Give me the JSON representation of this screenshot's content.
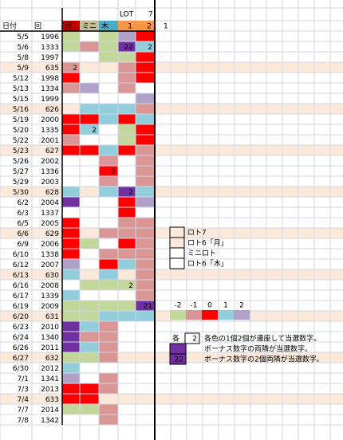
{
  "header": {
    "lot_label": "LOT",
    "lot_num": 7,
    "columns": [
      "日付",
      "回",
      "月",
      "ミニ",
      "木",
      1,
      2
    ],
    "extra": 1
  },
  "palette": {
    "G": "#c4d79b",
    "P": "#da9694",
    "R": "#ff0000",
    "B": "#92cddc",
    "V": "#b1a0c7",
    "D": "#7030a0",
    "W": "#ffffff",
    "F": "#fde9d9"
  },
  "header_colors": [
    "W",
    "W",
    "#c00000",
    "#c4bd97",
    "#4bacc6",
    "#f79646",
    "#f79646"
  ],
  "rows": [
    {
      "date": "5/5",
      "round": 1996,
      "cells": [
        {
          "c": "G"
        },
        {
          "c": "W"
        },
        {
          "c": "G"
        },
        {
          "c": "V"
        },
        {
          "c": "R"
        }
      ]
    },
    {
      "date": "5/6",
      "round": 1333,
      "cells": [
        {
          "c": "G"
        },
        {
          "c": "P"
        },
        {
          "c": "G"
        },
        {
          "c": "D",
          "t": 22
        },
        {
          "c": "B",
          "t": 2
        }
      ]
    },
    {
      "date": "5/8",
      "round": 1997,
      "cells": [
        {
          "c": "W"
        },
        {
          "c": "W"
        },
        {
          "c": "G"
        },
        {
          "c": "G"
        },
        {
          "c": "R"
        }
      ]
    },
    {
      "date": "5/9",
      "round": 635,
      "bg": "F",
      "cells": [
        {
          "c": "P",
          "t": 2
        },
        {
          "c": "F"
        },
        {
          "c": "F"
        },
        {
          "c": "P"
        },
        {
          "c": "R"
        }
      ]
    },
    {
      "date": "5/12",
      "round": 1998,
      "cells": [
        {
          "c": "R"
        },
        {
          "c": "W"
        },
        {
          "c": "W"
        },
        {
          "c": "P"
        },
        {
          "c": "R"
        }
      ]
    },
    {
      "date": "5/13",
      "round": 1334,
      "cells": [
        {
          "c": "P"
        },
        {
          "c": "V"
        },
        {
          "c": "W"
        },
        {
          "c": "P"
        },
        {
          "c": "W"
        }
      ]
    },
    {
      "date": "5/15",
      "round": 1999,
      "cells": [
        {
          "c": "W"
        },
        {
          "c": "W"
        },
        {
          "c": "W"
        },
        {
          "c": "W"
        },
        {
          "c": "V"
        }
      ]
    },
    {
      "date": "5/16",
      "round": 626,
      "bg": "F",
      "cells": [
        {
          "c": "F"
        },
        {
          "c": "B"
        },
        {
          "c": "B"
        },
        {
          "c": "B"
        },
        {
          "c": "P"
        }
      ]
    },
    {
      "date": "5/19",
      "round": 2000,
      "cells": [
        {
          "c": "R"
        },
        {
          "c": "R"
        },
        {
          "c": "B"
        },
        {
          "c": "R"
        },
        {
          "c": "B"
        }
      ]
    },
    {
      "date": "5/20",
      "round": 1335,
      "cells": [
        {
          "c": "R"
        },
        {
          "c": "B",
          "t": 2
        },
        {
          "c": "W"
        },
        {
          "c": "G"
        },
        {
          "c": "R"
        }
      ]
    },
    {
      "date": "5/22",
      "round": 2001,
      "cells": [
        {
          "c": "P"
        },
        {
          "c": "W"
        },
        {
          "c": "W"
        },
        {
          "c": "G"
        },
        {
          "c": "R"
        }
      ]
    },
    {
      "date": "5/23",
      "round": 627,
      "bg": "F",
      "cells": [
        {
          "c": "R"
        },
        {
          "c": "R"
        },
        {
          "c": "B"
        },
        {
          "c": "R"
        },
        {
          "c": "P"
        }
      ]
    },
    {
      "date": "5/26",
      "round": 2002,
      "cells": [
        {
          "c": "W"
        },
        {
          "c": "W"
        },
        {
          "c": "P"
        },
        {
          "c": "W"
        },
        {
          "c": "P"
        }
      ]
    },
    {
      "date": "5/27",
      "round": 1336,
      "cells": [
        {
          "c": "W"
        },
        {
          "c": "W"
        },
        {
          "c": "R",
          "t": 2
        },
        {
          "c": "W"
        },
        {
          "c": "P"
        }
      ]
    },
    {
      "date": "5/29",
      "round": 2003,
      "cells": [
        {
          "c": "W"
        },
        {
          "c": "W"
        },
        {
          "c": "P"
        },
        {
          "c": "W"
        },
        {
          "c": "P"
        }
      ]
    },
    {
      "date": "5/30",
      "round": 628,
      "bg": "F",
      "cells": [
        {
          "c": "B"
        },
        {
          "c": "F"
        },
        {
          "c": "B"
        },
        {
          "c": "D",
          "t": 2
        },
        {
          "c": "B"
        }
      ]
    },
    {
      "date": "6/2",
      "round": 2004,
      "cells": [
        {
          "c": "D"
        },
        {
          "c": "W"
        },
        {
          "c": "W"
        },
        {
          "c": "R"
        },
        {
          "c": "V"
        }
      ]
    },
    {
      "date": "6/3",
      "round": 1337,
      "cells": [
        {
          "c": "W"
        },
        {
          "c": "W"
        },
        {
          "c": "W"
        },
        {
          "c": "R"
        },
        {
          "c": "W"
        }
      ]
    },
    {
      "date": "6/5",
      "round": 2005,
      "cells": [
        {
          "c": "R"
        },
        {
          "c": "W"
        },
        {
          "c": "W"
        },
        {
          "c": "P"
        },
        {
          "c": "P"
        }
      ]
    },
    {
      "date": "6/6",
      "round": 629,
      "bg": "F",
      "cells": [
        {
          "c": "R"
        },
        {
          "c": "F"
        },
        {
          "c": "P"
        },
        {
          "c": "P"
        },
        {
          "c": "P"
        }
      ]
    },
    {
      "date": "6/9",
      "round": 2006,
      "cells": [
        {
          "c": "R"
        },
        {
          "c": "G"
        },
        {
          "c": "W"
        },
        {
          "c": "R"
        },
        {
          "c": "P"
        }
      ]
    },
    {
      "date": "6/10",
      "round": 1338,
      "cells": [
        {
          "c": "R"
        },
        {
          "c": "W"
        },
        {
          "c": "P"
        },
        {
          "c": "P"
        },
        {
          "c": "P"
        }
      ]
    },
    {
      "date": "6/12",
      "round": 2007,
      "cells": [
        {
          "c": "V"
        },
        {
          "c": "W"
        },
        {
          "c": "R"
        },
        {
          "c": "B"
        },
        {
          "c": "P"
        }
      ]
    },
    {
      "date": "6/13",
      "round": 630,
      "bg": "F",
      "cells": [
        {
          "c": "B"
        },
        {
          "c": "F"
        },
        {
          "c": "B"
        },
        {
          "c": "F"
        },
        {
          "c": "P"
        }
      ]
    },
    {
      "date": "6/16",
      "round": 2008,
      "cells": [
        {
          "c": "W"
        },
        {
          "c": "G"
        },
        {
          "c": "G"
        },
        {
          "c": "G",
          "t": 2
        },
        {
          "c": "P"
        }
      ]
    },
    {
      "date": "6/17",
      "round": 1339,
      "cells": [
        {
          "c": "B"
        },
        {
          "c": "W"
        },
        {
          "c": "W"
        },
        {
          "c": "W"
        },
        {
          "c": "P"
        }
      ]
    },
    {
      "date": "6/19",
      "round": 2009,
      "cells": [
        {
          "c": "G"
        },
        {
          "c": "G"
        },
        {
          "c": "G"
        },
        {
          "c": "G"
        },
        {
          "c": "D",
          "t": 21
        }
      ]
    },
    {
      "date": "6/20",
      "round": 631,
      "bg": "F",
      "cells": [
        {
          "c": "G"
        },
        {
          "c": "G"
        },
        {
          "c": "B"
        },
        {
          "c": "B"
        },
        {
          "c": "B"
        }
      ]
    },
    {
      "date": "6/23",
      "round": 2010,
      "cells": [
        {
          "c": "D"
        },
        {
          "c": "B"
        },
        {
          "c": "P"
        },
        {
          "c": "W"
        },
        {
          "c": "W"
        }
      ]
    },
    {
      "date": "6/24",
      "round": 1340,
      "cells": [
        {
          "c": "D"
        },
        {
          "c": "P"
        },
        {
          "c": "P"
        },
        {
          "c": "W"
        },
        {
          "c": "W"
        }
      ]
    },
    {
      "date": "6/26",
      "round": 2011,
      "cells": [
        {
          "c": "D"
        },
        {
          "c": "B"
        },
        {
          "c": "P"
        },
        {
          "c": "W"
        },
        {
          "c": "W"
        }
      ]
    },
    {
      "date": "6/27",
      "round": 632,
      "bg": "F",
      "cells": [
        {
          "c": "G"
        },
        {
          "c": "G"
        },
        {
          "c": "P"
        },
        {
          "c": "F"
        },
        {
          "c": "F"
        }
      ]
    },
    {
      "date": "6/30",
      "round": 2012,
      "cells": [
        {
          "c": "B"
        },
        {
          "c": "W"
        },
        {
          "c": "W"
        },
        {
          "c": "W"
        },
        {
          "c": "W"
        }
      ]
    },
    {
      "date": "7/1",
      "round": 1341,
      "cells": [
        {
          "c": "V"
        },
        {
          "c": "W"
        },
        {
          "c": "P"
        },
        {
          "c": "W"
        },
        {
          "c": "W"
        }
      ]
    },
    {
      "date": "7/3",
      "round": 2013,
      "cells": [
        {
          "c": "R"
        },
        {
          "c": "R"
        },
        {
          "c": "P"
        },
        {
          "c": "W"
        },
        {
          "c": "W"
        }
      ]
    },
    {
      "date": "7/4",
      "round": 633,
      "bg": "F",
      "cells": [
        {
          "c": "R"
        },
        {
          "c": "R"
        },
        {
          "c": "F"
        },
        {
          "c": "F"
        },
        {
          "c": "F"
        }
      ]
    },
    {
      "date": "7/7",
      "round": 2014,
      "cells": [
        {
          "c": "G"
        },
        {
          "c": "G"
        },
        {
          "c": "P"
        },
        {
          "c": "W"
        },
        {
          "c": "W"
        }
      ]
    },
    {
      "date": "7/8",
      "round": 1342,
      "cells": [
        {
          "c": "W"
        },
        {
          "c": "W"
        },
        {
          "c": "P"
        },
        {
          "c": "W"
        },
        {
          "c": "W"
        }
      ]
    }
  ],
  "legend": {
    "items": [
      {
        "label": "ロト7",
        "c": "F"
      },
      {
        "label": "ロト6「月」",
        "c": "F"
      },
      {
        "label": "ミニロト",
        "c": "W"
      },
      {
        "label": "ロト6「木」",
        "c": "W"
      }
    ],
    "scale": {
      "values": [
        -2,
        -1,
        0,
        1,
        2
      ],
      "colors": [
        "G",
        "P",
        "R",
        "B",
        "V"
      ]
    },
    "notes": [
      {
        "key": "各",
        "box": 2,
        "c": "W",
        "text": "各色の1個2個が連座して当選数字。"
      },
      {
        "c": "D",
        "text": "ボーナス数字の両隣が当選数字。"
      },
      {
        "c": "D",
        "box": 22,
        "text": "ボーナス数字の2個両隣が当選数字。"
      }
    ]
  }
}
